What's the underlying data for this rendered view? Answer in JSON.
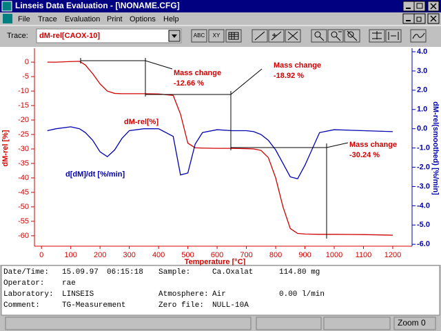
{
  "window": {
    "title": "Linseis Data Evaluation - [\\NONAME.CFG]"
  },
  "menu": [
    "File",
    "Trace",
    "Evaluation",
    "Print",
    "Options",
    "Help"
  ],
  "toolbar": {
    "trace_label": "Trace:",
    "trace_value": "dM-rel[CAOX-10]",
    "buttons": [
      "ABC",
      "XY"
    ]
  },
  "chart_data": {
    "type": "line",
    "x_label": "Temperature [°C]",
    "y_label": "dM-rel [%]",
    "y2_label": "dM-rel(smoothed) [%/min]",
    "x": [
      20,
      50,
      100,
      130,
      150,
      175,
      200,
      225,
      250,
      275,
      300,
      350,
      400,
      450,
      475,
      500,
      525,
      550,
      600,
      650,
      700,
      725,
      750,
      775,
      800,
      825,
      850,
      875,
      900,
      950,
      1000,
      1100,
      1200
    ],
    "xlim": [
      -24,
      1266
    ],
    "xticks": [
      0,
      100,
      200,
      300,
      400,
      500,
      600,
      700,
      800,
      900,
      1000,
      1100,
      1200
    ],
    "ylim": [
      -63.6,
      3.6
    ],
    "yticks": [
      0,
      -5,
      -10,
      -15,
      -20,
      -25,
      -30,
      -35,
      -40,
      -45,
      -50,
      -55,
      -60
    ],
    "y2lim": [
      -6.1,
      4
    ],
    "y2ticks": [
      {
        "value": 4,
        "label": "4.0"
      },
      {
        "value": 3,
        "label": "3.0"
      },
      {
        "value": 2,
        "label": "2.0"
      },
      {
        "value": 1,
        "label": "1.0"
      },
      {
        "value": 0,
        "label": "0.0"
      },
      {
        "value": -1,
        "label": "-1.0"
      },
      {
        "value": -2,
        "label": "-2.0"
      },
      {
        "value": -3,
        "label": "-3.0"
      },
      {
        "value": -4,
        "label": "-4.0"
      },
      {
        "value": -5,
        "label": "-5.0"
      },
      {
        "value": -6,
        "label": "-6.0"
      }
    ],
    "series": [
      {
        "name": "dM-rel[%]",
        "color": "#d00000",
        "values": [
          0,
          0,
          0.2,
          0.3,
          -1,
          -4,
          -7.5,
          -10,
          -10.8,
          -10.9,
          -10.9,
          -10.9,
          -11,
          -11.5,
          -18,
          -28,
          -29.6,
          -29.7,
          -29.8,
          -29.8,
          -29.9,
          -30,
          -30.5,
          -33,
          -40,
          -50,
          -57.5,
          -59.2,
          -59.4,
          -59.5,
          -59.5,
          -59.6,
          -59.8
        ]
      },
      {
        "name": "d[dM]/dt [%/min]",
        "color": "#0000b0",
        "axis": "y2",
        "values": [
          -0.1,
          0,
          0.1,
          0,
          -0.2,
          -0.6,
          -1.2,
          -1.45,
          -1.1,
          -0.5,
          -0.1,
          0,
          0,
          -0.4,
          -2.4,
          -2.3,
          -0.8,
          -0.2,
          -0.05,
          -0.1,
          -0.1,
          -0.15,
          -0.3,
          -0.6,
          -1.1,
          -1.8,
          -2.5,
          -2.6,
          -1.9,
          -0.2,
          -0.05,
          -0.1,
          -0.15
        ]
      }
    ],
    "annotations": [
      {
        "title": "Mass change",
        "label": "-12.66 %"
      },
      {
        "title": "Mass change",
        "label": "-18.92 %"
      },
      {
        "title": "Mass change",
        "label": "-30.24 %"
      }
    ]
  },
  "info": {
    "rows": [
      [
        "Date/Time:",
        "15.09.97",
        "06:15:18",
        "Sample:",
        "Ca.Oxalat",
        "114.80 mg"
      ],
      [
        "Operator:",
        "rae",
        null,
        null,
        null,
        null
      ],
      [
        "Laboratory:",
        "LINSEIS",
        null,
        "Atmosphere:",
        "Air",
        "0.00 l/min"
      ],
      [
        "Comment:",
        "TG-Measurement",
        null,
        "Zero file:",
        "NULL-10A",
        null
      ]
    ]
  },
  "status": {
    "zoom": "Zoom 0"
  }
}
